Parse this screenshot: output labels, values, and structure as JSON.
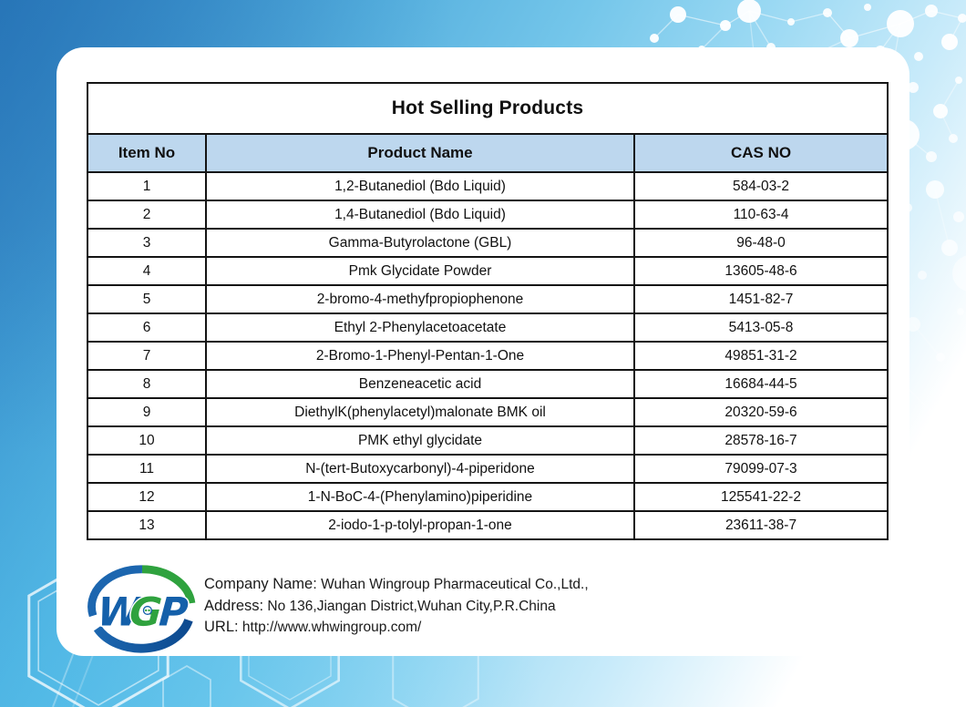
{
  "table": {
    "title": "Hot Selling Products",
    "columns": [
      "Item No",
      "Product Name",
      "CAS NO"
    ],
    "rows": [
      {
        "item_no": "1",
        "product_name": "1,2-Butanediol (Bdo Liquid)",
        "cas_no": "584-03-2"
      },
      {
        "item_no": "2",
        "product_name": "1,4-Butanediol (Bdo Liquid)",
        "cas_no": "110-63-4"
      },
      {
        "item_no": "3",
        "product_name": "Gamma-Butyrolactone (GBL)",
        "cas_no": "96-48-0"
      },
      {
        "item_no": "4",
        "product_name": "Pmk Glycidate Powder",
        "cas_no": "13605-48-6"
      },
      {
        "item_no": "5",
        "product_name": "2-bromo-4-methyfpropiophenone",
        "cas_no": "1451-82-7"
      },
      {
        "item_no": "6",
        "product_name": "Ethyl 2-Phenylacetoacetate",
        "cas_no": "5413-05-8"
      },
      {
        "item_no": "7",
        "product_name": "2-Bromo-1-Phenyl-Pentan-1-One",
        "cas_no": "49851-31-2"
      },
      {
        "item_no": "8",
        "product_name": "Benzeneacetic acid",
        "cas_no": "16684-44-5"
      },
      {
        "item_no": "9",
        "product_name": "DiethylK(phenylacetyl)malonate  BMK oil",
        "cas_no": "20320-59-6"
      },
      {
        "item_no": "10",
        "product_name": "PMK ethyl glycidate",
        "cas_no": "28578-16-7"
      },
      {
        "item_no": "11",
        "product_name": "N-(tert-Butoxycarbonyl)-4-piperidone",
        "cas_no": "79099-07-3"
      },
      {
        "item_no": "12",
        "product_name": "1-N-BoC-4-(Phenylamino)piperidine",
        "cas_no": "125541-22-2"
      },
      {
        "item_no": "13",
        "product_name": "2-iodo-1-p-tolyl-propan-1-one",
        "cas_no": "23611-38-7"
      }
    ]
  },
  "footer": {
    "logo": {
      "w": "W",
      "g": "G",
      "p": "P"
    },
    "lines": [
      {
        "label": "Company Name:",
        "value": " Wuhan Wingroup Pharmaceutical Co.,Ltd.,"
      },
      {
        "label": "Address:",
        "value": " No 136,Jiangan District,Wuhan City,P.R.China"
      },
      {
        "label": "URL:",
        "value": " http://www.whwingroup.com/"
      }
    ]
  },
  "colors": {
    "header_bg": "#BDD7EE",
    "background_blue": "#2E7DBE",
    "background_cyan": "#55BCE8",
    "logo_blue": "#1460AA",
    "logo_dark_blue": "#0D4A8F",
    "logo_green": "#2FA23E",
    "border_black": "#141414"
  }
}
